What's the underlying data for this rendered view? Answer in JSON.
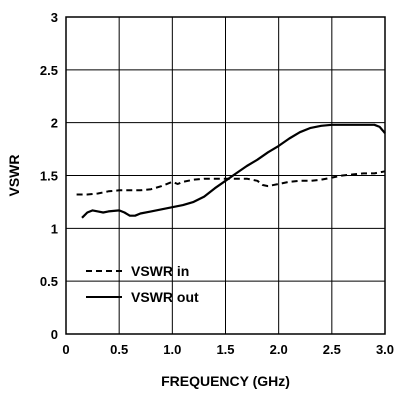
{
  "chart_data": {
    "type": "line",
    "title": "",
    "xlabel": "FREQUENCY (GHz)",
    "ylabel": "VSWR",
    "xlim": [
      0,
      3.0
    ],
    "ylim": [
      0,
      3
    ],
    "grid": true,
    "legend_position": "bottom-left",
    "x_ticks": [
      0,
      0.5,
      1.0,
      1.5,
      2.0,
      2.5,
      3.0
    ],
    "x_tick_labels": [
      "0",
      "0.5",
      "1.0",
      "1.5",
      "2.0",
      "2.5",
      "3.0"
    ],
    "y_ticks": [
      0,
      0.5,
      1,
      1.5,
      2,
      2.5,
      3
    ],
    "y_tick_labels": [
      "0",
      "0.5",
      "1",
      "1.5",
      "2",
      "2.5",
      "3"
    ],
    "series": [
      {
        "name": "VSWR in",
        "style": "dashed",
        "color": "#000000",
        "x": [
          0.1,
          0.2,
          0.3,
          0.4,
          0.5,
          0.6,
          0.7,
          0.8,
          0.9,
          1.0,
          1.05,
          1.1,
          1.2,
          1.3,
          1.4,
          1.5,
          1.6,
          1.7,
          1.8,
          1.85,
          1.9,
          2.0,
          2.1,
          2.2,
          2.3,
          2.4,
          2.5,
          2.6,
          2.7,
          2.8,
          2.9,
          3.0
        ],
        "y": [
          1.32,
          1.32,
          1.33,
          1.35,
          1.36,
          1.36,
          1.36,
          1.37,
          1.4,
          1.44,
          1.42,
          1.44,
          1.46,
          1.47,
          1.47,
          1.47,
          1.47,
          1.47,
          1.45,
          1.41,
          1.4,
          1.42,
          1.44,
          1.45,
          1.45,
          1.46,
          1.48,
          1.5,
          1.51,
          1.52,
          1.52,
          1.54
        ]
      },
      {
        "name": "VSWR out",
        "style": "solid",
        "color": "#000000",
        "x": [
          0.15,
          0.2,
          0.25,
          0.3,
          0.35,
          0.4,
          0.5,
          0.55,
          0.6,
          0.65,
          0.7,
          0.8,
          0.9,
          1.0,
          1.1,
          1.2,
          1.3,
          1.4,
          1.5,
          1.6,
          1.7,
          1.8,
          1.9,
          2.0,
          2.1,
          2.2,
          2.3,
          2.4,
          2.5,
          2.6,
          2.7,
          2.8,
          2.9,
          2.95,
          3.0
        ],
        "y": [
          1.1,
          1.15,
          1.17,
          1.16,
          1.15,
          1.16,
          1.17,
          1.15,
          1.12,
          1.12,
          1.14,
          1.16,
          1.18,
          1.2,
          1.22,
          1.25,
          1.3,
          1.38,
          1.45,
          1.52,
          1.59,
          1.65,
          1.72,
          1.78,
          1.85,
          1.91,
          1.95,
          1.97,
          1.98,
          1.98,
          1.98,
          1.98,
          1.98,
          1.96,
          1.9
        ]
      }
    ]
  }
}
